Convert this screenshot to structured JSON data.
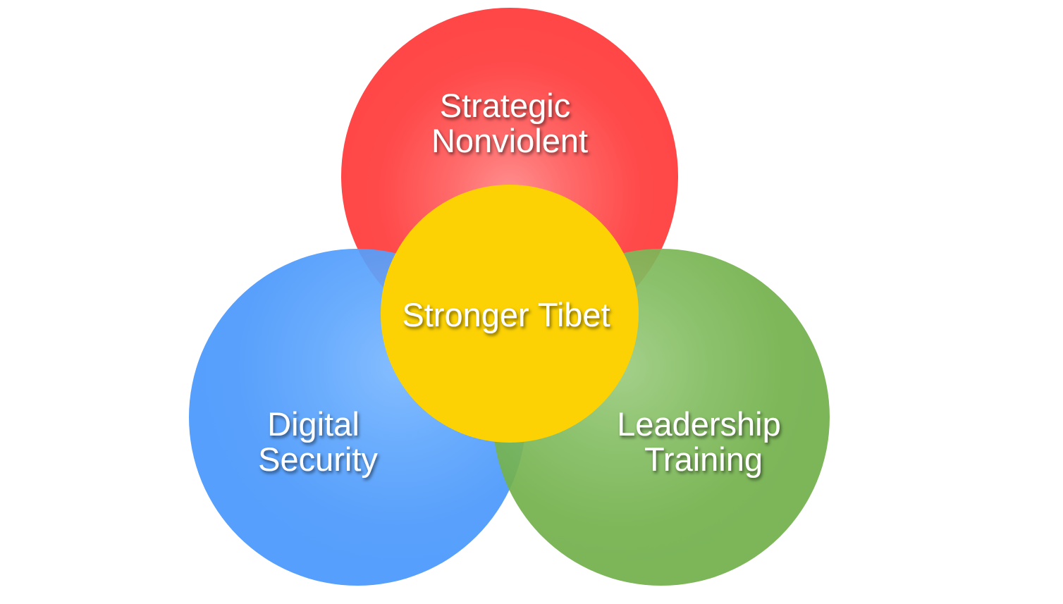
{
  "diagram": {
    "circles": {
      "top": {
        "lines": [
          "Strategic",
          "Nonviolent"
        ],
        "color": "#ff4747"
      },
      "left": {
        "lines": [
          "Digital",
          "Security"
        ],
        "color": "#4897fc"
      },
      "right": {
        "lines": [
          "Leadership",
          "Training"
        ],
        "color": "#71b04b"
      },
      "center": {
        "lines": [
          "Stronger Tibet"
        ],
        "color": "#fcd204"
      }
    }
  }
}
